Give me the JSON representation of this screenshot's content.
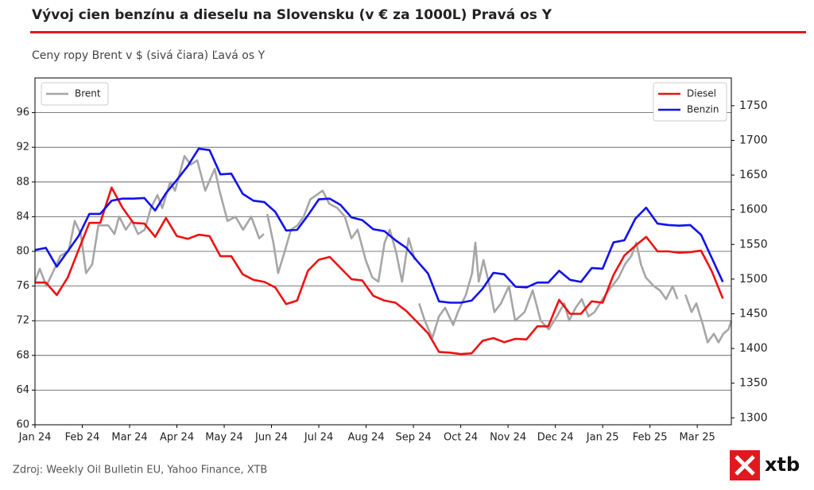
{
  "chart_data": {
    "type": "line",
    "title": "Vývoj cien benzínu a dieselu na Slovensku (v € za 1000L) Pravá os Y",
    "subtitle": "Ceny ropy Brent v $ (sivá čiara) Ľavá os Y",
    "source": "Zdroj: Weekly Oil Bulletin EU, Yahoo Finance, XTB",
    "logo": "xtb",
    "xlim": [
      0,
      14.72
    ],
    "xticks": [
      {
        "value": 0,
        "label": "Jan 24"
      },
      {
        "value": 1,
        "label": "Feb 24"
      },
      {
        "value": 2,
        "label": "Mar 24"
      },
      {
        "value": 3,
        "label": "Apr 24"
      },
      {
        "value": 4,
        "label": "May 24"
      },
      {
        "value": 5,
        "label": "Jun 24"
      },
      {
        "value": 6,
        "label": "Jul 24"
      },
      {
        "value": 7,
        "label": "Aug 24"
      },
      {
        "value": 8,
        "label": "Sep 24"
      },
      {
        "value": 9,
        "label": "Oct 24"
      },
      {
        "value": 10,
        "label": "Nov 24"
      },
      {
        "value": 11,
        "label": "Dec 24"
      },
      {
        "value": 12,
        "label": "Jan 25"
      },
      {
        "value": 13,
        "label": "Feb 25"
      },
      {
        "value": 14,
        "label": "Mar 25"
      }
    ],
    "ylim": [
      60,
      100
    ],
    "yticks": [
      60,
      64,
      68,
      72,
      76,
      80,
      84,
      88,
      92,
      96
    ],
    "y2lim": [
      1290,
      1790
    ],
    "y2ticks": [
      1300,
      1350,
      1400,
      1450,
      1500,
      1550,
      1600,
      1650,
      1700,
      1750
    ],
    "grid": true,
    "legend": {
      "y": "upper left",
      "y2": "upper right"
    },
    "x": [
      0,
      0.23,
      0.46,
      0.69,
      0.92,
      1.15,
      1.38,
      1.62,
      1.85,
      2.08,
      2.31,
      2.54,
      2.77,
      3.0,
      3.23,
      3.46,
      3.69,
      3.92,
      4.15,
      4.39,
      4.62,
      4.85,
      5.08,
      5.31,
      5.54,
      5.77,
      6.0,
      6.23,
      6.46,
      6.69,
      6.92,
      7.15,
      7.39,
      7.62,
      7.85,
      8.08,
      8.31,
      8.54,
      8.77,
      9.0,
      9.23,
      9.46,
      9.69,
      9.92,
      10.16,
      10.39,
      10.62,
      10.85,
      11.08,
      11.31,
      11.54,
      11.77,
      12.0,
      12.23,
      12.46,
      12.69,
      12.92,
      13.16,
      13.39,
      13.62,
      13.85,
      14.08,
      14.31,
      14.54
    ],
    "series": [
      {
        "name": "Brent",
        "color": "#a6a6a6",
        "axis": "y",
        "x": [
          0.0,
          0.1,
          0.24,
          0.37,
          0.54,
          0.71,
          0.84,
          0.97,
          1.08,
          1.21,
          1.34,
          1.45,
          1.55,
          1.68,
          1.78,
          1.92,
          2.05,
          2.18,
          2.32,
          2.45,
          2.59,
          2.69,
          2.86,
          2.96,
          3.16,
          3.29,
          3.43,
          3.6,
          3.8,
          3.9,
          4.07,
          4.24,
          4.4,
          4.57,
          4.74,
          4.84,
          4.88,
          4.91,
          5.04,
          5.14,
          5.28,
          5.41,
          5.55,
          5.68,
          5.82,
          5.95,
          6.08,
          6.22,
          6.39,
          6.55,
          6.69,
          6.82,
          6.99,
          7.13,
          7.26,
          7.39,
          7.5,
          7.63,
          7.76,
          7.9,
          8.03,
          8.08,
          8.12,
          8.24,
          8.4,
          8.54,
          8.67,
          8.84,
          8.94,
          9.11,
          9.24,
          9.31,
          9.38,
          9.48,
          9.61,
          9.71,
          9.85,
          10.02,
          10.15,
          10.35,
          10.52,
          10.69,
          10.86,
          11.03,
          11.19,
          11.29,
          11.43,
          11.56,
          11.7,
          11.83,
          12.0,
          12.13,
          12.34,
          12.47,
          12.61,
          12.71,
          12.81,
          12.91,
          13.08,
          13.21,
          13.34,
          13.48,
          13.58,
          13.66,
          13.75,
          13.88,
          13.98,
          14.12,
          14.22,
          14.35,
          14.45,
          14.55,
          14.66,
          14.72
        ],
        "values": [
          76.5,
          78,
          76,
          77.5,
          79.5,
          80,
          83.5,
          82,
          77.5,
          78.5,
          83,
          83,
          83,
          82,
          84,
          82.5,
          83.5,
          82,
          82.5,
          85,
          86.5,
          85,
          88,
          87,
          91,
          90,
          90.5,
          87,
          89.5,
          87,
          83.5,
          84,
          82.5,
          84,
          81.5,
          82,
          null,
          84.3,
          81,
          77.5,
          80,
          82.5,
          83,
          84,
          86,
          86.5,
          87,
          85.5,
          85,
          84,
          81.5,
          82.5,
          79,
          77,
          76.5,
          81,
          82.5,
          80,
          76.5,
          81.5,
          79,
          null,
          74,
          72,
          70,
          72.5,
          73.5,
          71.5,
          73,
          75,
          77.5,
          81,
          76.5,
          79,
          76,
          73,
          74,
          76,
          72,
          73,
          75.5,
          72,
          71,
          72.5,
          74,
          72,
          73.5,
          74.5,
          72.5,
          73,
          74.5,
          75.5,
          77,
          78.5,
          79.5,
          81,
          78.5,
          77,
          76,
          75.5,
          74.5,
          76,
          74.5,
          null,
          75,
          73,
          74,
          71.5,
          69.5,
          70.5,
          69.5,
          70.5,
          71,
          72
        ]
      },
      {
        "name": "Diesel",
        "color": "#ee1111",
        "axis": "y2",
        "values": [
          1495,
          1495,
          1477,
          1502,
          1542,
          1581,
          1581,
          1632,
          1603,
          1581,
          1580,
          1561,
          1588,
          1562,
          1558,
          1564,
          1562,
          1533,
          1533,
          1507,
          1499,
          1496,
          1488,
          1464,
          1469,
          1512,
          1528,
          1532,
          1516,
          1500,
          1498,
          1476,
          1469,
          1466,
          1454,
          1438,
          1422,
          1395,
          1394,
          1392,
          1393,
          1411,
          1415,
          1409,
          1414,
          1413,
          1432,
          1432,
          1470,
          1450,
          1450,
          1468,
          1466,
          1506,
          1534,
          1548,
          1561,
          1540,
          1540,
          1538,
          1539,
          1541,
          1511,
          1472
        ]
      },
      {
        "name": "Benzin",
        "color": "#1111ee",
        "axis": "y2",
        "values": [
          1542,
          1545,
          1518,
          1540,
          1562,
          1594,
          1594,
          1613,
          1616,
          1616,
          1617,
          1599,
          1624,
          1643,
          1663,
          1688,
          1686,
          1651,
          1652,
          1623,
          1613,
          1611,
          1597,
          1570,
          1571,
          1592,
          1615,
          1616,
          1607,
          1589,
          1585,
          1572,
          1569,
          1556,
          1545,
          1526,
          1508,
          1468,
          1466,
          1466,
          1469,
          1486,
          1509,
          1507,
          1489,
          1488,
          1495,
          1495,
          1512,
          1499,
          1496,
          1516,
          1515,
          1553,
          1556,
          1587,
          1603,
          1580,
          1578,
          1577,
          1578,
          1564,
          1530,
          1496
        ]
      }
    ]
  }
}
